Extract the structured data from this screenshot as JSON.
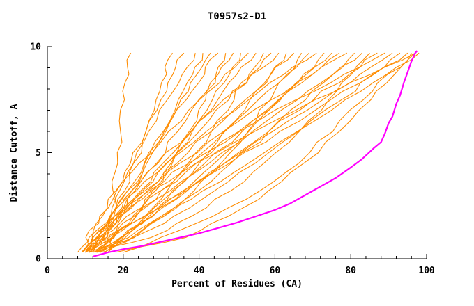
{
  "chart_data": {
    "type": "line",
    "title": "T0957s2-D1",
    "xlabel": "Percent of Residues (CA)",
    "ylabel": "Distance Cutoff, A",
    "xlim": [
      0,
      100
    ],
    "ylim": [
      0,
      10
    ],
    "x_major_ticks": [
      0,
      20,
      40,
      60,
      80,
      100
    ],
    "x_minor_step": 4,
    "y_major_ticks": [
      0,
      5,
      10
    ],
    "y_minor_step": 1,
    "grid": false,
    "legend": "none",
    "colors": {
      "models": "#ff8c00",
      "highlight": "#ff00ff",
      "axis": "#000000",
      "background": "#ffffff"
    },
    "highlight_series": {
      "name": "highlighted-model",
      "color": "#ff00ff",
      "points": [
        [
          12,
          0.1
        ],
        [
          16,
          0.3
        ],
        [
          20,
          0.45
        ],
        [
          25,
          0.6
        ],
        [
          30,
          0.8
        ],
        [
          35,
          1.0
        ],
        [
          40,
          1.2
        ],
        [
          45,
          1.45
        ],
        [
          50,
          1.7
        ],
        [
          55,
          2.0
        ],
        [
          60,
          2.3
        ],
        [
          64,
          2.6
        ],
        [
          68,
          3.0
        ],
        [
          72,
          3.4
        ],
        [
          76,
          3.8
        ],
        [
          80,
          4.3
        ],
        [
          83,
          4.7
        ],
        [
          86,
          5.2
        ],
        [
          88,
          5.5
        ],
        [
          89,
          5.9
        ],
        [
          90,
          6.4
        ],
        [
          91,
          6.7
        ],
        [
          92,
          7.3
        ],
        [
          93,
          7.7
        ],
        [
          94,
          8.3
        ],
        [
          95,
          8.8
        ],
        [
          96,
          9.3
        ],
        [
          97,
          9.7
        ],
        [
          97.5,
          9.8
        ]
      ]
    },
    "model_series": {
      "name": "model-curves",
      "color": "#ff8c00",
      "y_levels": [
        0.3,
        1,
        2,
        3.2,
        4.5,
        6,
        7.5,
        8.7,
        9.7
      ],
      "x_per_curve": [
        [
          15,
          15.7,
          16.6,
          17.5,
          18.3,
          19.3,
          20.4,
          21.3,
          22
        ],
        [
          12,
          14.6,
          17.4,
          20.2,
          23,
          26.1,
          29,
          31.2,
          33
        ],
        [
          10,
          11.9,
          14.7,
          18,
          21.6,
          25.8,
          29.9,
          33.2,
          36
        ],
        [
          14,
          14.9,
          16.7,
          19.4,
          22.8,
          27,
          31.7,
          35.6,
          39
        ],
        [
          9,
          13,
          17.2,
          21.5,
          25.8,
          30.4,
          34.9,
          38.2,
          41
        ],
        [
          11,
          13.4,
          16.8,
          20.9,
          25.3,
          30.4,
          35.5,
          39.6,
          43
        ],
        [
          16,
          17,
          19.2,
          22.3,
          26.2,
          31.1,
          36.5,
          41.1,
          45
        ],
        [
          10,
          17.8,
          23.2,
          28.3,
          32.8,
          37.4,
          41.5,
          44.6,
          47
        ],
        [
          12,
          14.8,
          18.7,
          23.4,
          28.5,
          34.4,
          40.3,
          45.1,
          49
        ],
        [
          13,
          17.8,
          22.7,
          27.9,
          33,
          38.5,
          43.7,
          47.7,
          51
        ],
        [
          9,
          10.5,
          13.8,
          18.5,
          24.4,
          31.9,
          40.1,
          47,
          53
        ],
        [
          11,
          14.3,
          19,
          24.6,
          30.7,
          37.7,
          44.7,
          50.3,
          55
        ],
        [
          15,
          20.3,
          25.7,
          31.4,
          37.1,
          43.1,
          48.9,
          53.4,
          57
        ],
        [
          10,
          13.7,
          18.9,
          25.1,
          31.9,
          39.7,
          47.5,
          53.8,
          59
        ],
        [
          12,
          13.7,
          17.3,
          22.6,
          29.2,
          37.5,
          46.6,
          54.3,
          61
        ],
        [
          14,
          20.1,
          26.5,
          33.2,
          39.7,
          46.8,
          53.6,
          58.8,
          63
        ],
        [
          9,
          13.2,
          19.1,
          26.3,
          34,
          42.9,
          51.9,
          59.1,
          65
        ],
        [
          11,
          22.8,
          31,
          38.7,
          45.6,
          52.5,
          58.7,
          63.4,
          67
        ],
        [
          13,
          17.2,
          23.1,
          30.3,
          38,
          46.9,
          55.9,
          63.1,
          69
        ],
        [
          10,
          12.1,
          16.6,
          23.2,
          31.4,
          41.8,
          53.1,
          62.7,
          71
        ],
        [
          12,
          19.6,
          27.6,
          35.9,
          44,
          52.9,
          61.3,
          67.8,
          73
        ],
        [
          15,
          19.5,
          25.9,
          33.5,
          41.8,
          51.4,
          61,
          68.6,
          75
        ],
        [
          9,
          14.1,
          21.3,
          30,
          39.4,
          50.2,
          61.1,
          69.8,
          77
        ],
        [
          11,
          13.3,
          18.4,
          25.8,
          34.9,
          46.4,
          59.1,
          69.8,
          79
        ],
        [
          13,
          21.5,
          30.3,
          39.6,
          48.7,
          58.6,
          67.9,
          75.2,
          81
        ],
        [
          10,
          15.4,
          23.2,
          32.6,
          42.6,
          54.2,
          65.9,
          75.3,
          83
        ],
        [
          12,
          27.3,
          38.1,
          48.1,
          57,
          66.1,
          74.2,
          80.3,
          85
        ],
        [
          14,
          19.4,
          27.2,
          36.6,
          46.6,
          58.2,
          69.9,
          79.3,
          87
        ],
        [
          9,
          11.7,
          17.7,
          26.4,
          37.1,
          50.7,
          65.6,
          78.1,
          89
        ],
        [
          11,
          17,
          25.5,
          35.7,
          46.8,
          59.5,
          72.3,
          82.5,
          91
        ],
        [
          13,
          23,
          33.4,
          44.3,
          55,
          66.6,
          77.6,
          86.1,
          93
        ],
        [
          10,
          16.3,
          25.4,
          36.3,
          48,
          61.5,
          74.9,
          86,
          95
        ],
        [
          8,
          11,
          17.7,
          27.3,
          39.2,
          54.4,
          70.9,
          84.9,
          97
        ],
        [
          16,
          22.1,
          30.8,
          41.3,
          52.7,
          65.7,
          78.6,
          89.3,
          98
        ],
        [
          18,
          36.2,
          48,
          58.6,
          67.9,
          77.3,
          85.5,
          91.5,
          96
        ],
        [
          20,
          30,
          44,
          56,
          66,
          75,
          83,
          90,
          97
        ]
      ]
    }
  }
}
